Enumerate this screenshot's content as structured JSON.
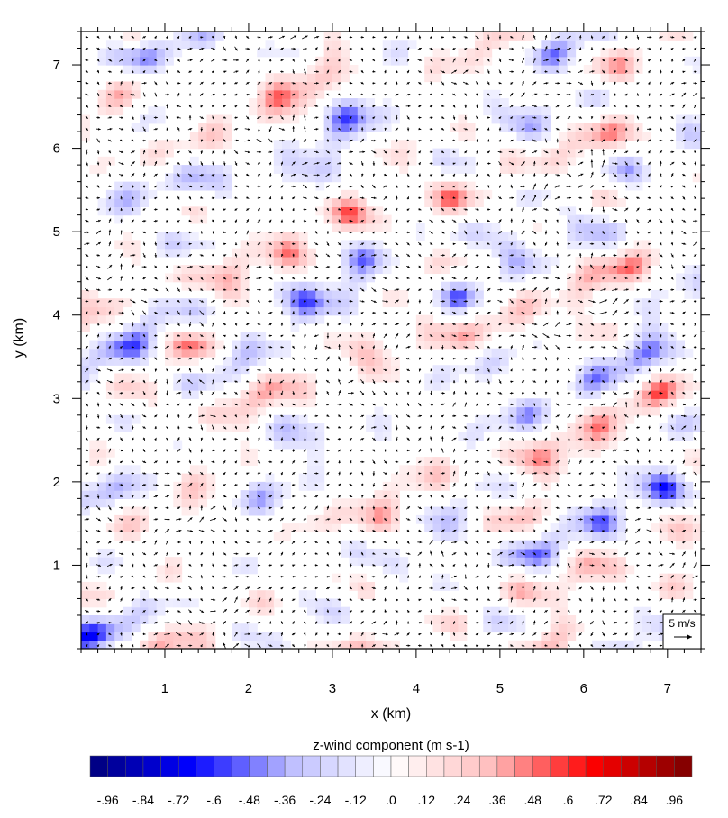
{
  "chart_data": {
    "type": "heatmap",
    "title": "",
    "xlabel": "x (km)",
    "ylabel": "y (km)",
    "xlim": [
      0,
      7.4
    ],
    "ylim": [
      0,
      7.4
    ],
    "x_ticks": [
      "1",
      "2",
      "3",
      "4",
      "5",
      "6",
      "7"
    ],
    "y_ticks": [
      "1",
      "2",
      "3",
      "4",
      "5",
      "6",
      "7"
    ],
    "overlay": "wind vectors",
    "reference_vector": {
      "label": "5 m/s",
      "magnitude": 5
    },
    "colorbar": {
      "title": "z-wind component  (m s-1)",
      "range": [
        -1.02,
        1.02
      ],
      "tick_labels": [
        "-.96",
        "-.84",
        "-.72",
        "-.6",
        "-.48",
        "-.36",
        "-.24",
        "-.12",
        ".0",
        ".12",
        ".24",
        ".36",
        ".48",
        ".6",
        ".72",
        ".84",
        ".96"
      ],
      "tick_values": [
        -0.96,
        -0.84,
        -0.72,
        -0.6,
        -0.48,
        -0.36,
        -0.24,
        -0.12,
        0,
        0.12,
        0.24,
        0.36,
        0.48,
        0.6,
        0.72,
        0.84,
        0.96
      ],
      "low_color": "#00007a",
      "mid_color": "#ffffff",
      "high_color": "#7a0000"
    },
    "grid": false
  }
}
